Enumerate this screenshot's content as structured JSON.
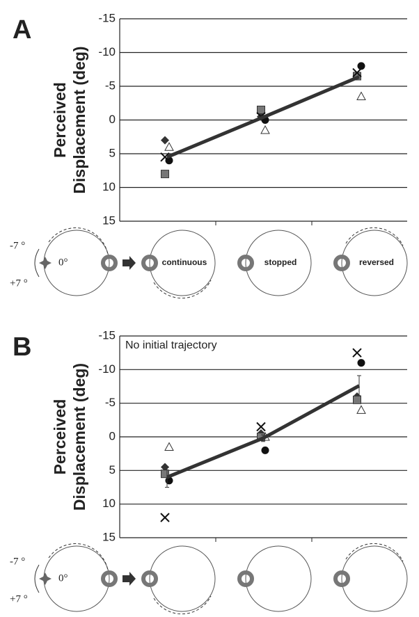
{
  "chart_data": [
    {
      "type": "line",
      "panel": "A",
      "ylabel": [
        "Perceived",
        "Displacement (deg)"
      ],
      "categories": [
        "continuous",
        "stopped",
        "reversed"
      ],
      "ylim": [
        15,
        -15
      ],
      "yticks": [
        -15,
        -10,
        -5,
        0,
        5,
        10,
        15
      ],
      "grid": true,
      "diagram_labels": [
        "-7 °",
        "+7 °",
        "0°"
      ],
      "series": [
        {
          "marker": "diamond",
          "color": "#333333",
          "values": [
            3,
            -0.5,
            -6.5
          ]
        },
        {
          "marker": "triangle",
          "color": "#ffffff",
          "values": [
            4,
            1.5,
            -3.5
          ]
        },
        {
          "marker": "square",
          "color": "#777777",
          "values": [
            8,
            -1.5,
            -6.5
          ]
        },
        {
          "marker": "circle",
          "color": "#111111",
          "values": [
            6,
            0,
            -8
          ]
        },
        {
          "marker": "x",
          "color": "#111111",
          "values": [
            5.5,
            -0.5,
            -7
          ]
        },
        {
          "marker": "line",
          "color": "#333333",
          "values": [
            5.5,
            -0.4,
            -6.4
          ]
        }
      ]
    },
    {
      "type": "line",
      "panel": "B",
      "ylabel": [
        "Perceived",
        "Displacement (deg)"
      ],
      "annotation": "No initial trajectory",
      "categories": [
        null,
        null,
        null
      ],
      "ylim": [
        15,
        -15
      ],
      "yticks": [
        -15,
        -10,
        -5,
        0,
        5,
        10,
        15
      ],
      "grid": true,
      "diagram_labels": [
        "-7 °",
        "+7 °",
        "0°"
      ],
      "series": [
        {
          "marker": "diamond",
          "color": "#333333",
          "values": [
            4.5,
            -0.5,
            -6
          ]
        },
        {
          "marker": "triangle",
          "color": "#ffffff",
          "values": [
            1.5,
            0,
            -4
          ]
        },
        {
          "marker": "square",
          "color": "#777777",
          "values": [
            5.5,
            0,
            -5.5
          ]
        },
        {
          "marker": "circle",
          "color": "#111111",
          "values": [
            6.5,
            2,
            -11
          ]
        },
        {
          "marker": "x",
          "color": "#111111",
          "values": [
            12,
            -1.5,
            -12.5
          ]
        },
        {
          "marker": "line",
          "color": "#333333",
          "values": [
            6,
            0.2,
            -7.6
          ],
          "errors": [
            1.5,
            0.5,
            1.5
          ]
        }
      ]
    }
  ]
}
